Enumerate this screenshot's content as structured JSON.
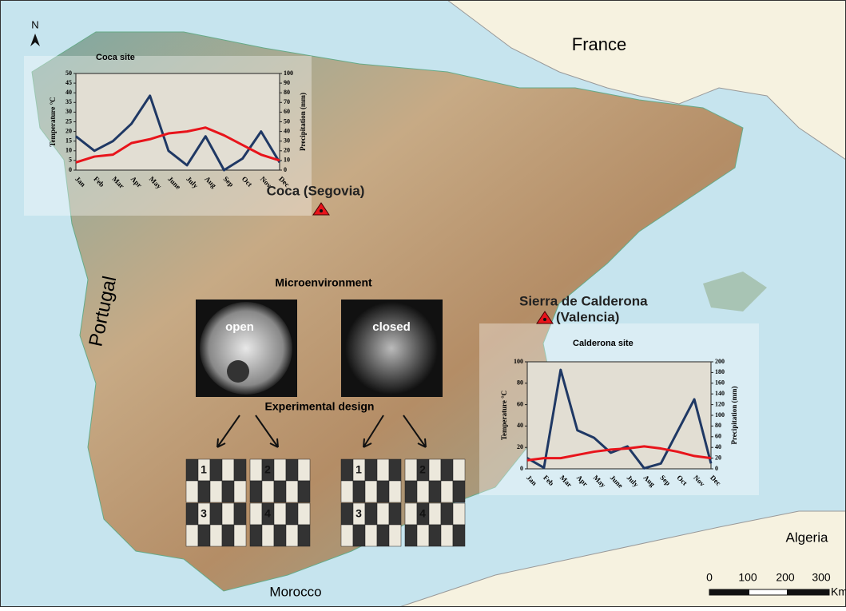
{
  "map": {
    "north": "N",
    "countries": {
      "france": "France",
      "portugal": "Portugal",
      "algeria": "Algeria",
      "morocco": "Morocco"
    },
    "sites": {
      "coca": "Coca (Segovia)",
      "calderona_1": "Sierra de Calderona",
      "calderona_2": "(Valencia)"
    },
    "microenvironment": {
      "title": "Microenvironment",
      "open": "open",
      "closed": "closed"
    },
    "experimental_design": {
      "title": "Experimental design",
      "plots": [
        "1",
        "2",
        "3",
        "4"
      ]
    },
    "scale": {
      "labels": [
        "0",
        "100",
        "200",
        "300"
      ],
      "unit": "Km"
    }
  },
  "chart_data": [
    {
      "type": "line",
      "title": "Coca site",
      "y_label": "Temperature °C",
      "y2_label": "Precipitation (mm)",
      "categories": [
        "Jan",
        "Feb",
        "Mar",
        "Apr",
        "May",
        "June",
        "July",
        "Aug",
        "Sep",
        "Oct",
        "Nov",
        "Dec"
      ],
      "ylim": [
        0,
        50
      ],
      "yticks": [
        0,
        5,
        10,
        15,
        20,
        25,
        30,
        35,
        40,
        45,
        50
      ],
      "y2lim": [
        0,
        100
      ],
      "y2ticks": [
        0,
        10,
        20,
        30,
        40,
        50,
        60,
        70,
        80,
        90,
        100
      ],
      "series": [
        {
          "color": "#1f3864",
          "axis": "y2",
          "values": [
            35,
            20,
            30,
            48,
            77,
            20,
            5,
            35,
            0,
            12,
            40,
            8
          ]
        },
        {
          "color": "#e8141b",
          "values": [
            4,
            7,
            8,
            14,
            16,
            19,
            20,
            22,
            18,
            13,
            8,
            5
          ]
        }
      ]
    },
    {
      "type": "line",
      "title": "Calderona site",
      "y_label": "Temperature °C",
      "y2_label": "Precipitation (mm)",
      "categories": [
        "Jan",
        "Feb",
        "Mar",
        "Apr",
        "May",
        "June",
        "July",
        "Aug",
        "Sep",
        "Oct",
        "Nov",
        "Dec"
      ],
      "ylim": [
        0,
        100
      ],
      "yticks": [
        0,
        20,
        40,
        60,
        80,
        100
      ],
      "y2lim": [
        0,
        200
      ],
      "y2ticks": [
        0,
        20,
        40,
        60,
        80,
        100,
        120,
        140,
        160,
        180,
        200
      ],
      "series": [
        {
          "color": "#1f3864",
          "axis": "y2",
          "values": [
            20,
            2,
            185,
            72,
            58,
            30,
            42,
            1,
            10,
            70,
            130,
            10
          ]
        },
        {
          "color": "#e8141b",
          "values": [
            8,
            10,
            10,
            13,
            16,
            18,
            19,
            21,
            19,
            16,
            12,
            10
          ]
        }
      ]
    }
  ]
}
